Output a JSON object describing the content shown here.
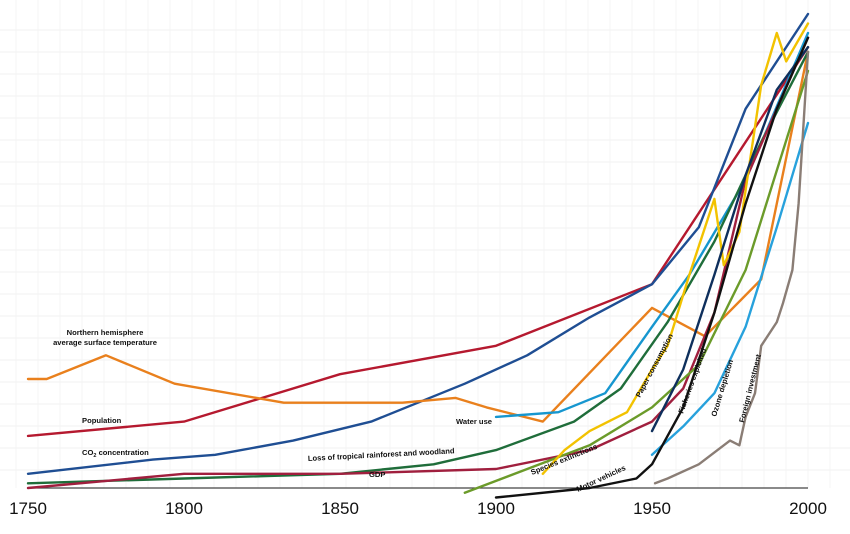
{
  "chart_data": {
    "type": "line",
    "title": "",
    "xlabel": "",
    "ylabel": "",
    "xlim": [
      1750,
      2000
    ],
    "xticks": [
      "1750",
      "1800",
      "1850",
      "1900",
      "1950",
      "2000"
    ],
    "y_axis_labeled": false,
    "grid": true,
    "legend": "none (series labelled inline)",
    "series": [
      {
        "name": "Population",
        "color": "#b5192f",
        "x": [
          1750,
          1800,
          1850,
          1900,
          1950,
          1975,
          2000
        ],
        "y": [
          0.11,
          0.14,
          0.24,
          0.3,
          0.43,
          0.68,
          0.93
        ]
      },
      {
        "name": "CO2 concentration",
        "label_prefix": "CO",
        "label_sub": "2",
        "label_suffix": " concentration",
        "color": "#1f4e93",
        "x": [
          1750,
          1790,
          1810,
          1835,
          1860,
          1890,
          1910,
          1930,
          1950,
          1965,
          1980,
          2000
        ],
        "y": [
          0.03,
          0.06,
          0.07,
          0.1,
          0.14,
          0.22,
          0.28,
          0.36,
          0.43,
          0.55,
          0.8,
          1.0
        ]
      },
      {
        "name": "Northern hemisphere average surface temperature",
        "label_lines": [
          "Northern hemisphere",
          "average surface temperature"
        ],
        "color": "#e9801d",
        "x": [
          1750,
          1752,
          1756,
          1775,
          1797,
          1832,
          1850,
          1870,
          1887,
          1897,
          1915,
          1950,
          1967,
          1985,
          2000
        ],
        "y": [
          0.23,
          0.23,
          0.23,
          0.28,
          0.22,
          0.18,
          0.18,
          0.18,
          0.19,
          0.17,
          0.14,
          0.38,
          0.32,
          0.44,
          0.92
        ]
      },
      {
        "name": "Water use",
        "color": "#1696cf",
        "x": [
          1900,
          1920,
          1935,
          1950,
          1962,
          1980,
          2000
        ],
        "y": [
          0.15,
          0.16,
          0.2,
          0.34,
          0.45,
          0.65,
          0.96
        ]
      },
      {
        "name": "Loss of tropical rainforest and woodland",
        "color": "#1f6d3a",
        "x": [
          1750,
          1800,
          1850,
          1880,
          1900,
          1925,
          1940,
          1955,
          1970,
          1985,
          2000
        ],
        "y": [
          0.01,
          0.02,
          0.03,
          0.05,
          0.08,
          0.14,
          0.21,
          0.35,
          0.52,
          0.73,
          0.92
        ]
      },
      {
        "name": "GDP",
        "color": "#a01f3e",
        "x": [
          1750,
          1800,
          1850,
          1900,
          1930,
          1950,
          1960,
          1970,
          1980,
          2000
        ],
        "y": [
          0.0,
          0.03,
          0.03,
          0.04,
          0.08,
          0.14,
          0.21,
          0.37,
          0.65,
          0.95
        ]
      },
      {
        "name": "Species extinctions",
        "color": "#6b9b2a",
        "x": [
          1890,
          1910,
          1930,
          1950,
          1965,
          1980,
          2000
        ],
        "y": [
          -0.01,
          0.04,
          0.09,
          0.17,
          0.26,
          0.46,
          0.88
        ]
      },
      {
        "name": "Paper consumption",
        "color": "#f2c200",
        "x": [
          1915,
          1922,
          1930,
          1942,
          1950,
          1955,
          1962,
          1970,
          1973,
          1978,
          1985,
          1990,
          1993,
          2000
        ],
        "y": [
          0.03,
          0.08,
          0.12,
          0.16,
          0.25,
          0.3,
          0.45,
          0.61,
          0.47,
          0.54,
          0.85,
          0.96,
          0.9,
          0.98
        ]
      },
      {
        "name": "Fisheries exploited",
        "color": "#0e2f5c",
        "x": [
          1950,
          1960,
          1970,
          1980,
          1990,
          2000
        ],
        "y": [
          0.12,
          0.25,
          0.45,
          0.66,
          0.84,
          0.93
        ]
      },
      {
        "name": "Ozone depletion",
        "color": "#27a1dc",
        "x": [
          1950,
          1960,
          1970,
          1980,
          1990,
          2000
        ],
        "y": [
          0.07,
          0.13,
          0.2,
          0.34,
          0.55,
          0.77
        ]
      },
      {
        "name": "Motor vehicles",
        "color": "#111111",
        "x": [
          1900,
          1930,
          1945,
          1950,
          1960,
          1970,
          1980,
          1990,
          2000
        ],
        "y": [
          -0.02,
          0.0,
          0.02,
          0.05,
          0.17,
          0.37,
          0.6,
          0.8,
          0.95
        ]
      },
      {
        "name": "Foreign investment",
        "color": "#8a7d75",
        "x": [
          1951,
          1955,
          1965,
          1975,
          1978,
          1980,
          1983,
          1985,
          1990,
          1992,
          1995,
          1997,
          2000
        ],
        "y": [
          0.01,
          0.02,
          0.05,
          0.1,
          0.09,
          0.15,
          0.2,
          0.3,
          0.35,
          0.39,
          0.46,
          0.6,
          0.92
        ]
      }
    ]
  }
}
